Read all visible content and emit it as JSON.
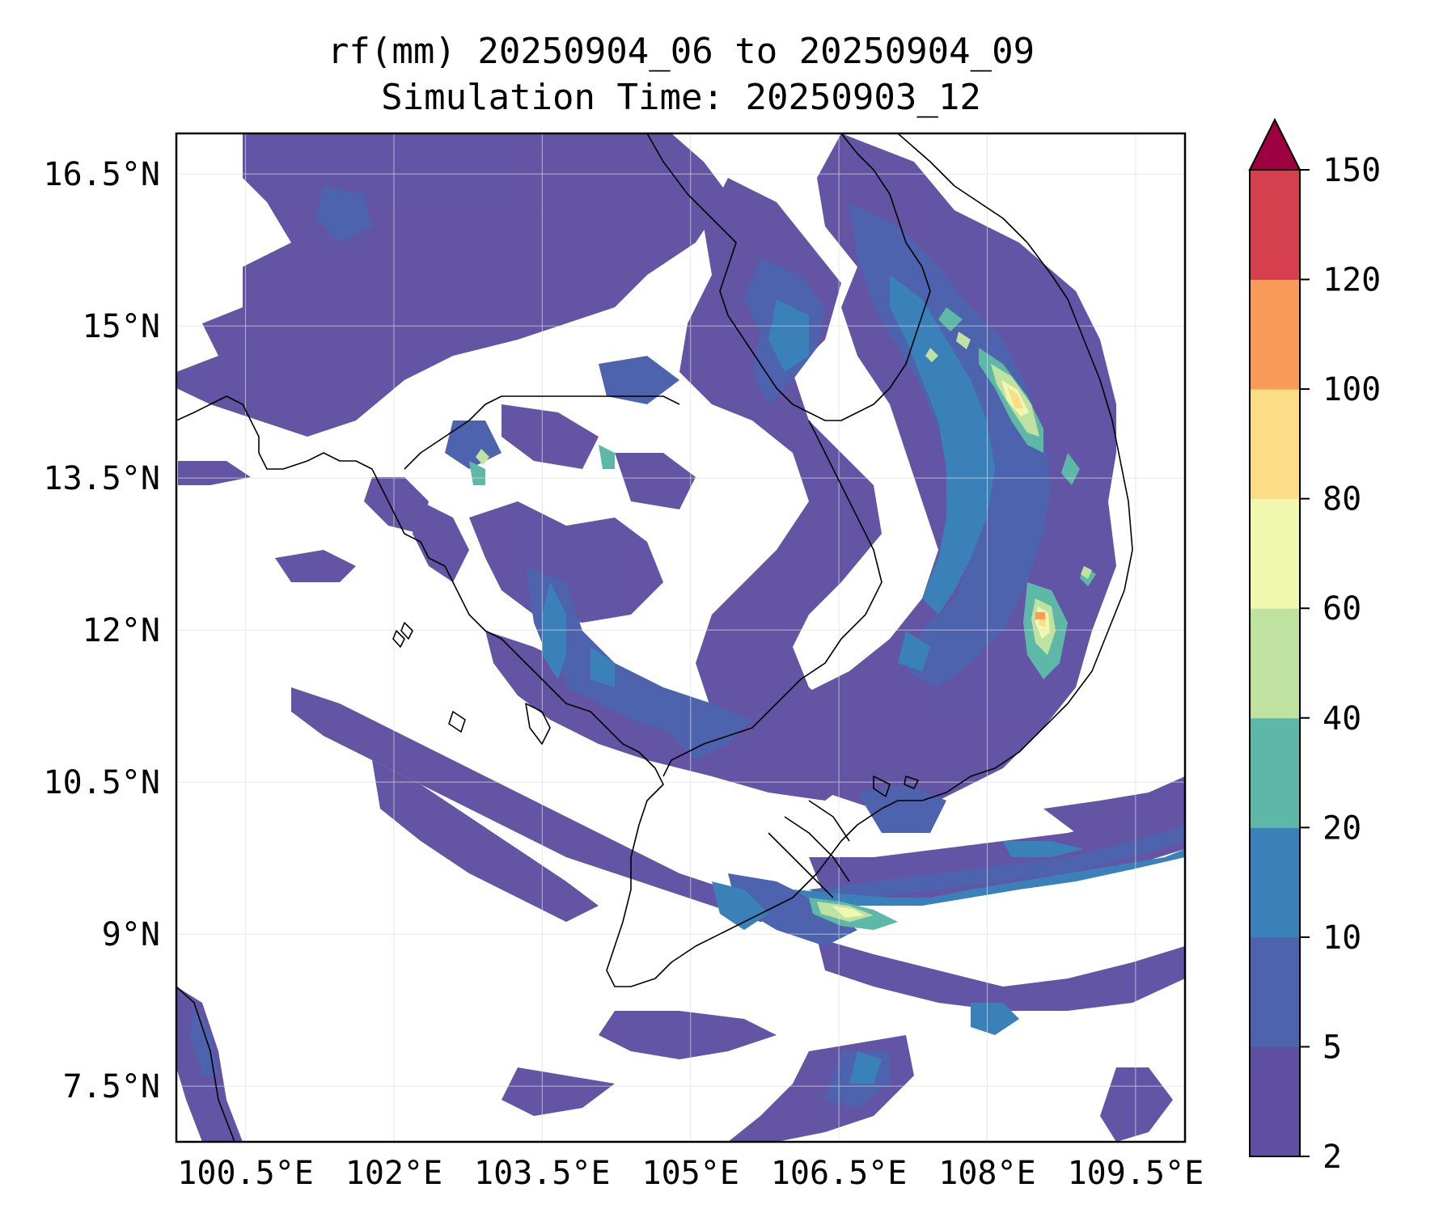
{
  "title": {
    "line1": "rf(mm) 20250904_06 to 20250904_09",
    "line2": "Simulation Time: 20250903_12"
  },
  "map": {
    "lon_range": [
      99.8,
      110.0
    ],
    "lat_range": [
      6.95,
      16.9
    ],
    "x_ticks": [
      {
        "value": 100.5,
        "label": "100.5°E"
      },
      {
        "value": 102.0,
        "label": "102°E"
      },
      {
        "value": 103.5,
        "label": "103.5°E"
      },
      {
        "value": 105.0,
        "label": "105°E"
      },
      {
        "value": 106.5,
        "label": "106.5°E"
      },
      {
        "value": 108.0,
        "label": "108°E"
      },
      {
        "value": 109.5,
        "label": "109.5°E"
      }
    ],
    "y_ticks": [
      {
        "value": 16.5,
        "label": "16.5°N"
      },
      {
        "value": 15.0,
        "label": "15°N"
      },
      {
        "value": 13.5,
        "label": "13.5°N"
      },
      {
        "value": 12.0,
        "label": "12°N"
      },
      {
        "value": 10.5,
        "label": "10.5°N"
      },
      {
        "value": 9.0,
        "label": "9°N"
      },
      {
        "value": 7.5,
        "label": "7.5°N"
      }
    ],
    "grid": true,
    "coastline_color": "#000000"
  },
  "colorbar": {
    "levels": [
      2,
      5,
      10,
      20,
      40,
      60,
      80,
      100,
      120,
      150
    ],
    "labels": [
      "2",
      "5",
      "10",
      "20",
      "40",
      "60",
      "80",
      "100",
      "120",
      "150"
    ],
    "colors": [
      "#5e4fa2",
      "#4d63ad",
      "#3a81ba",
      "#5db8a8",
      "#bfe2a0",
      "#eff8ae",
      "#fbdc87",
      "#f99b5a",
      "#d6404e"
    ],
    "extend_color": "#9e0142",
    "extend": "max"
  },
  "chart_data": {
    "type": "heatmap",
    "title": "rf(mm) 20250904_06 to 20250904_09",
    "subtitle": "Simulation Time: 20250903_12",
    "variable": "rf(mm)",
    "xlim": [
      99.8,
      110.0
    ],
    "ylim": [
      6.95,
      16.9
    ],
    "levels": [
      2,
      5,
      10,
      20,
      40,
      60,
      80,
      100,
      120,
      150
    ],
    "rain_areas": [
      {
        "lon": 107.4,
        "lat": 14.55,
        "level": 5
      },
      {
        "lon": 108.2,
        "lat": 14.45,
        "level": 10
      },
      {
        "lon": 108.3,
        "lat": 14.35,
        "level": 60
      },
      {
        "lon": 108.3,
        "lat": 12.3,
        "level": 10
      },
      {
        "lon": 108.35,
        "lat": 12.3,
        "level": 80
      },
      {
        "lon": 108.38,
        "lat": 12.32,
        "level": 120
      },
      {
        "lon": 108.55,
        "lat": 12.6,
        "level": 40
      },
      {
        "lon": 106.4,
        "lat": 9.2,
        "level": 10
      },
      {
        "lon": 106.5,
        "lat": 9.2,
        "level": 60
      },
      {
        "lon": 103.6,
        "lat": 11.0,
        "level": 10
      },
      {
        "lon": 107.0,
        "lat": 12.0,
        "level": 5
      },
      {
        "lon": 108.5,
        "lat": 9.6,
        "level": 5
      },
      {
        "lon": 103.5,
        "lat": 15.5,
        "level": 2
      },
      {
        "lon": 101.0,
        "lat": 14.9,
        "level": 2
      },
      {
        "lon": 104.5,
        "lat": 7.8,
        "level": 2
      },
      {
        "lon": 106.2,
        "lat": 7.5,
        "level": 5
      }
    ]
  }
}
